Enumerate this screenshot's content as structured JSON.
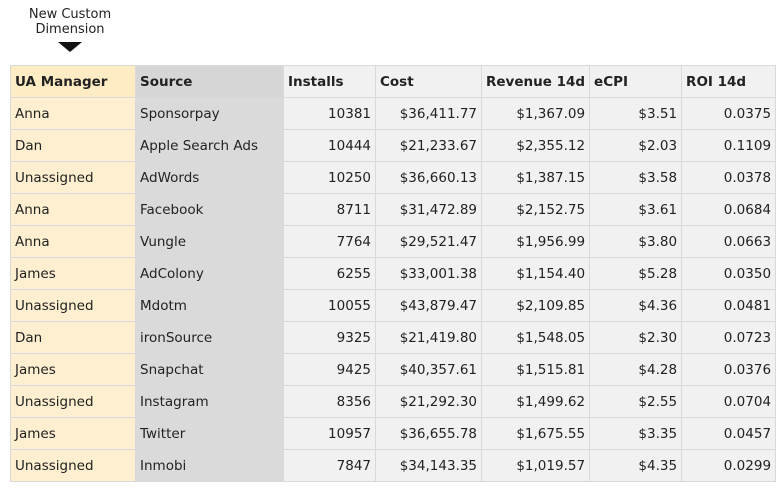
{
  "annotation": {
    "line1": "New Custom",
    "line2": "Dimension"
  },
  "table": {
    "headers": [
      "UA Manager",
      "Source",
      "Installs",
      "Cost",
      "Revenue 14d",
      "eCPI",
      "ROI 14d"
    ],
    "rows": [
      [
        "Anna",
        "Sponsorpay",
        "10381",
        "$36,411.77",
        "$1,367.09",
        "$3.51",
        "0.0375"
      ],
      [
        "Dan",
        "Apple Search Ads",
        "10444",
        "$21,233.67",
        "$2,355.12",
        "$2.03",
        "0.1109"
      ],
      [
        "Unassigned",
        "AdWords",
        "10250",
        "$36,660.13",
        "$1,387.15",
        "$3.58",
        "0.0378"
      ],
      [
        "Anna",
        "Facebook",
        "8711",
        "$31,472.89",
        "$2,152.75",
        "$3.61",
        "0.0684"
      ],
      [
        "Anna",
        "Vungle",
        "7764",
        "$29,521.47",
        "$1,956.99",
        "$3.80",
        "0.0663"
      ],
      [
        "James",
        "AdColony",
        "6255",
        "$33,001.38",
        "$1,154.40",
        "$5.28",
        "0.0350"
      ],
      [
        "Unassigned",
        "Mdotm",
        "10055",
        "$43,879.47",
        "$2,109.85",
        "$4.36",
        "0.0481"
      ],
      [
        "Dan",
        "ironSource",
        "9325",
        "$21,419.80",
        "$1,548.05",
        "$2.30",
        "0.0723"
      ],
      [
        "James",
        "Snapchat",
        "9425",
        "$40,357.61",
        "$1,515.81",
        "$4.28",
        "0.0376"
      ],
      [
        "Unassigned",
        "Instagram",
        "8356",
        "$21,292.30",
        "$1,499.62",
        "$2.55",
        "0.0704"
      ],
      [
        "James",
        "Twitter",
        "10957",
        "$36,655.78",
        "$1,675.55",
        "$3.35",
        "0.0457"
      ],
      [
        "Unassigned",
        "Inmobi",
        "7847",
        "$34,143.35",
        "$1,019.57",
        "$4.35",
        "0.0299"
      ]
    ]
  }
}
